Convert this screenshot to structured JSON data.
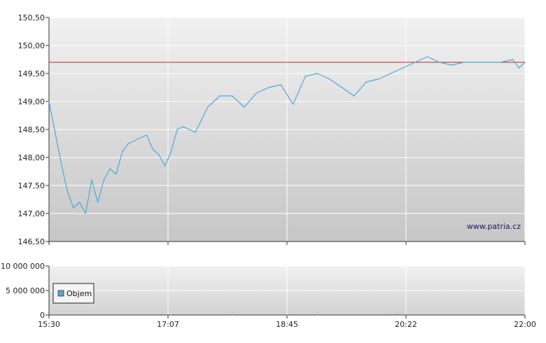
{
  "chart_data": [
    {
      "type": "line",
      "panel": "price",
      "x_ticks": [
        "15:30",
        "17:07",
        "18:45",
        "20:22",
        "22:00"
      ],
      "x_range": [
        "15:30",
        "22:00"
      ],
      "y_ticks": [
        "146,50",
        "147,00",
        "147,50",
        "148,00",
        "148,50",
        "149,00",
        "149,50",
        "150,00",
        "150,50"
      ],
      "ylim": [
        146.5,
        150.5
      ],
      "reference_line": 149.7,
      "reference_color": "#cc2222",
      "line_color": "#4fa8d8",
      "grid": true,
      "watermark": "www.patria.cz",
      "series": [
        {
          "x": [
            "15:30",
            "15:35",
            "15:40",
            "15:45",
            "15:50",
            "15:55",
            "16:00",
            "16:05",
            "16:10",
            "16:15",
            "16:20",
            "16:25",
            "16:30",
            "16:35",
            "16:40",
            "16:45",
            "16:50",
            "16:55",
            "17:00",
            "17:05",
            "17:10",
            "17:15",
            "17:20",
            "17:30",
            "17:40",
            "17:50",
            "18:00",
            "18:10",
            "18:20",
            "18:30",
            "18:40",
            "18:50",
            "19:00",
            "19:10",
            "19:20",
            "19:30",
            "19:40",
            "19:50",
            "20:00",
            "20:10",
            "20:20",
            "20:30",
            "20:40",
            "20:50",
            "21:00",
            "21:10",
            "21:20",
            "21:30",
            "21:40",
            "21:50",
            "21:55",
            "22:00"
          ],
          "values": [
            149.0,
            148.45,
            147.9,
            147.4,
            147.1,
            147.2,
            147.0,
            147.6,
            147.2,
            147.6,
            147.8,
            147.7,
            148.1,
            148.25,
            148.3,
            148.35,
            148.4,
            148.15,
            148.05,
            147.85,
            148.1,
            148.5,
            148.55,
            148.45,
            148.9,
            149.1,
            149.1,
            148.9,
            149.15,
            149.25,
            149.3,
            148.95,
            149.45,
            149.5,
            149.4,
            149.25,
            149.1,
            149.35,
            149.4,
            149.5,
            149.6,
            149.7,
            149.8,
            149.7,
            149.65,
            149.7,
            149.7,
            149.7,
            149.7,
            149.75,
            149.6,
            149.7
          ]
        }
      ]
    },
    {
      "type": "bar",
      "panel": "volume",
      "y_ticks": [
        "0",
        "5 000 000",
        "10 000 000"
      ],
      "ylim": [
        0,
        10000000
      ],
      "legend": [
        "Objem"
      ],
      "legend_position": "top-left",
      "bar_color": "#4fa8d8",
      "x_ticks": [
        "15:30",
        "17:07",
        "18:45",
        "20:22",
        "22:00"
      ],
      "series": [
        {
          "name": "Objem",
          "x": [
            "17:10",
            "18:00",
            "18:45",
            "19:10",
            "20:15"
          ],
          "values": [
            40000,
            30000,
            40000,
            30000,
            300000
          ]
        }
      ]
    }
  ]
}
